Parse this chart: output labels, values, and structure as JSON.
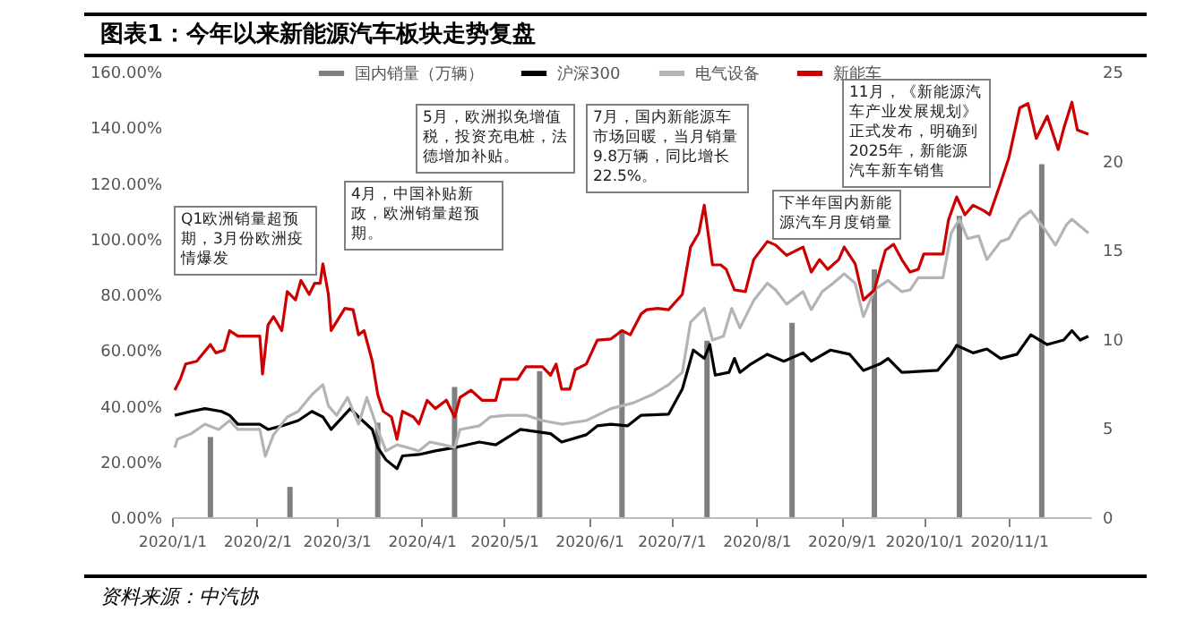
{
  "chart_data": {
    "type": "line",
    "title": "图表1：今年以来新能源汽车板块走势复盘",
    "annotations": [
      "Q1欧洲销量超预期，3月份欧洲疫情爆发",
      "4月，中国补贴新政，欧洲销量超预期。",
      "5月，欧洲拟免增值税，投资充电桩，法德增加补贴。",
      "7月，国内新能源车市场回暖，当月销量9.8万辆，同比增长22.5%。",
      "下半年国内新能源汽车月度销量",
      "11月，《新能源汽车产业发展规划》正式发布，明确到2025年，新能源汽车新车销售",
      "资料来源：中汽协"
    ],
    "xlim": [
      "2020-01-01",
      "2020-12-01"
    ],
    "xticks": [
      {
        "value": "2020-01-01",
        "label": "2020/1/1"
      },
      {
        "value": "2020-02-01",
        "label": "2020/2/1"
      },
      {
        "value": "2020-03-01",
        "label": "2020/3/1"
      },
      {
        "value": "2020-04-01",
        "label": "2020/4/1"
      },
      {
        "value": "2020-05-01",
        "label": "2020/5/1"
      },
      {
        "value": "2020-06-01",
        "label": "2020/6/1"
      },
      {
        "value": "2020-07-01",
        "label": "2020/7/1"
      },
      {
        "value": "2020-08-01",
        "label": "2020/8/1"
      },
      {
        "value": "2020-09-01",
        "label": "2020/9/1"
      },
      {
        "value": "2020-10-01",
        "label": "2020/10/1"
      },
      {
        "value": "2020-11-01",
        "label": "2020/11/1"
      }
    ],
    "ylim": [
      0,
      160
    ],
    "yticks": [
      {
        "value": 0,
        "label": "0.00%"
      },
      {
        "value": 20,
        "label": "20.00%"
      },
      {
        "value": 40,
        "label": "40.00%"
      },
      {
        "value": 60,
        "label": "60.00%"
      },
      {
        "value": 80,
        "label": "80.00%"
      },
      {
        "value": 100,
        "label": "100.00%"
      },
      {
        "value": 120,
        "label": "120.00%"
      },
      {
        "value": 140,
        "label": "140.00%"
      },
      {
        "value": 160,
        "label": "160.00%"
      }
    ],
    "y2lim": [
      0,
      25
    ],
    "y2ticks": [
      0,
      5,
      10,
      15,
      20,
      25
    ],
    "legend": "top",
    "series": [
      {
        "name": "国内销量（万辆）",
        "type": "bar",
        "axis": "y2",
        "color": "#7f7f7f",
        "x": [
          "2020-01-15",
          "2020-02-13",
          "2020-03-16",
          "2020-04-13",
          "2020-05-14",
          "2020-06-13",
          "2020-07-14",
          "2020-08-14",
          "2020-09-13",
          "2020-10-14",
          "2020-11-13"
        ],
        "values": [
          4.5,
          1.7,
          5.3,
          7.3,
          8.2,
          10.5,
          9.9,
          10.9,
          13.9,
          16.9,
          19.8
        ]
      },
      {
        "name": "沪深300",
        "color": "#000000",
        "x": [
          "2020-01-02",
          "2020-01-08",
          "2020-01-13",
          "2020-01-19",
          "2020-01-22",
          "2020-01-25",
          "2020-02-02",
          "2020-02-05",
          "2020-02-10",
          "2020-02-16",
          "2020-02-21",
          "2020-02-25",
          "2020-02-28",
          "2020-03-06",
          "2020-03-09",
          "2020-03-14",
          "2020-03-16",
          "2020-03-19",
          "2020-03-23",
          "2020-03-25",
          "2020-03-31",
          "2020-04-06",
          "2020-04-13",
          "2020-04-22",
          "2020-04-28",
          "2020-05-07",
          "2020-05-18",
          "2020-05-22",
          "2020-05-31",
          "2020-06-04",
          "2020-06-09",
          "2020-06-15",
          "2020-06-20",
          "2020-06-30",
          "2020-07-05",
          "2020-07-09",
          "2020-07-13",
          "2020-07-15",
          "2020-07-17",
          "2020-07-22",
          "2020-07-24",
          "2020-07-26",
          "2020-07-30",
          "2020-08-05",
          "2020-08-11",
          "2020-08-18",
          "2020-08-21",
          "2020-08-28",
          "2020-09-04",
          "2020-09-09",
          "2020-09-15",
          "2020-09-18",
          "2020-09-23",
          "2020-10-06",
          "2020-10-11",
          "2020-10-13",
          "2020-10-19",
          "2020-10-24",
          "2020-10-29",
          "2020-11-04",
          "2020-11-09",
          "2020-11-15",
          "2020-11-21",
          "2020-11-24",
          "2020-11-27",
          "2020-11-30"
        ],
        "values": [
          36.6,
          38,
          39,
          38,
          36.6,
          33.4,
          33.4,
          31.5,
          32.8,
          34.7,
          38,
          36,
          31.5,
          39,
          36,
          31.5,
          25,
          20.6,
          17.4,
          22,
          22.5,
          23.8,
          25,
          27,
          26,
          31.5,
          30,
          27,
          29.6,
          32.8,
          33.4,
          32.8,
          36.6,
          37,
          46,
          60,
          57,
          62,
          51,
          52,
          57,
          52,
          55,
          58.5,
          56,
          59,
          56,
          60,
          58.5,
          52.7,
          55,
          57,
          52,
          52.7,
          58.5,
          61.7,
          59,
          60.4,
          57,
          58.5,
          65.5,
          62,
          63.6,
          67,
          63.6,
          65
        ]
      },
      {
        "name": "电气设备",
        "color": "#b4b4b4",
        "x": [
          "2020-01-02",
          "2020-01-03",
          "2020-01-08",
          "2020-01-13",
          "2020-01-18",
          "2020-01-22",
          "2020-01-25",
          "2020-02-02",
          "2020-02-04",
          "2020-02-07",
          "2020-02-12",
          "2020-02-16",
          "2020-02-21",
          "2020-02-25",
          "2020-02-27",
          "2020-03-01",
          "2020-03-05",
          "2020-03-09",
          "2020-03-12",
          "2020-03-16",
          "2020-03-19",
          "2020-03-23",
          "2020-03-27",
          "2020-03-31",
          "2020-04-04",
          "2020-04-09",
          "2020-04-13",
          "2020-04-15",
          "2020-04-22",
          "2020-04-26",
          "2020-05-02",
          "2020-05-09",
          "2020-05-15",
          "2020-05-22",
          "2020-05-31",
          "2020-06-09",
          "2020-06-17",
          "2020-06-24",
          "2020-06-30",
          "2020-07-05",
          "2020-07-08",
          "2020-07-13",
          "2020-07-16",
          "2020-07-20",
          "2020-07-23",
          "2020-07-26",
          "2020-07-31",
          "2020-08-05",
          "2020-08-08",
          "2020-08-12",
          "2020-08-18",
          "2020-08-21",
          "2020-08-25",
          "2020-08-29",
          "2020-09-02",
          "2020-09-06",
          "2020-09-09",
          "2020-09-13",
          "2020-09-18",
          "2020-09-23",
          "2020-09-26",
          "2020-09-29",
          "2020-10-08",
          "2020-10-11",
          "2020-10-14",
          "2020-10-17",
          "2020-10-21",
          "2020-10-24",
          "2020-10-29",
          "2020-11-01",
          "2020-11-05",
          "2020-11-09",
          "2020-11-14",
          "2020-11-18",
          "2020-11-22",
          "2020-11-24",
          "2020-11-30"
        ],
        "values": [
          25,
          28,
          30,
          33.4,
          31.5,
          34.7,
          31.5,
          31.5,
          21.9,
          29.6,
          36,
          38,
          44,
          47.6,
          40,
          36.6,
          43,
          33.4,
          43,
          31.5,
          23.8,
          26,
          25,
          23.8,
          27,
          26,
          25,
          31.5,
          32.8,
          36,
          36.6,
          36.6,
          34.7,
          33.4,
          34.7,
          39,
          41,
          44,
          47.6,
          52,
          70,
          75,
          63.6,
          65,
          75,
          68,
          77.8,
          84,
          81.6,
          76.5,
          81,
          74.5,
          81,
          84,
          87.4,
          84,
          72,
          81.6,
          85,
          81,
          81.6,
          86,
          86,
          102,
          107,
          100,
          101,
          92.5,
          99,
          100,
          107,
          110,
          103.5,
          97.7,
          105,
          107,
          102
        ]
      },
      {
        "name": "新能车",
        "color": "#cc0000",
        "x": [
          "2020-01-02",
          "2020-01-04",
          "2020-01-06",
          "2020-01-10",
          "2020-01-15",
          "2020-01-17",
          "2020-01-20",
          "2020-01-22",
          "2020-01-25",
          "2020-02-02",
          "2020-02-03",
          "2020-02-05",
          "2020-02-07",
          "2020-02-10",
          "2020-02-12",
          "2020-02-15",
          "2020-02-17",
          "2020-02-20",
          "2020-02-22",
          "2020-02-24",
          "2020-02-25",
          "2020-02-27",
          "2020-02-28",
          "2020-03-04",
          "2020-03-07",
          "2020-03-09",
          "2020-03-11",
          "2020-03-14",
          "2020-03-16",
          "2020-03-18",
          "2020-03-21",
          "2020-03-23",
          "2020-03-25",
          "2020-03-29",
          "2020-03-31",
          "2020-04-03",
          "2020-04-06",
          "2020-04-10",
          "2020-04-13",
          "2020-04-15",
          "2020-04-19",
          "2020-04-23",
          "2020-04-28",
          "2020-04-30",
          "2020-05-06",
          "2020-05-09",
          "2020-05-15",
          "2020-05-18",
          "2020-05-20",
          "2020-05-22",
          "2020-05-25",
          "2020-05-27",
          "2020-05-31",
          "2020-06-04",
          "2020-06-09",
          "2020-06-13",
          "2020-06-16",
          "2020-06-20",
          "2020-06-22",
          "2020-06-26",
          "2020-06-30",
          "2020-07-05",
          "2020-07-08",
          "2020-07-11",
          "2020-07-13",
          "2020-07-16",
          "2020-07-19",
          "2020-07-21",
          "2020-07-24",
          "2020-07-28",
          "2020-07-31",
          "2020-08-05",
          "2020-08-08",
          "2020-08-12",
          "2020-08-18",
          "2020-08-21",
          "2020-08-24",
          "2020-08-27",
          "2020-08-31",
          "2020-09-02",
          "2020-09-06",
          "2020-09-09",
          "2020-09-13",
          "2020-09-17",
          "2020-09-20",
          "2020-09-23",
          "2020-09-26",
          "2020-09-29",
          "2020-10-01",
          "2020-10-08",
          "2020-10-10",
          "2020-10-13",
          "2020-10-16",
          "2020-10-19",
          "2020-10-23",
          "2020-10-25",
          "2020-10-29",
          "2020-11-01",
          "2020-11-05",
          "2020-11-08",
          "2020-11-11",
          "2020-11-15",
          "2020-11-19",
          "2020-11-21",
          "2020-11-24",
          "2020-11-26",
          "2020-11-30"
        ],
        "values": [
          45.6,
          49.5,
          55,
          56,
          62,
          59,
          60,
          67,
          65,
          65,
          51.4,
          69,
          72,
          67,
          81,
          78,
          85,
          80,
          84,
          84,
          91,
          80,
          67,
          75,
          74.5,
          65.5,
          67,
          56,
          44,
          38,
          36,
          28,
          38,
          36,
          33.5,
          42,
          39,
          42,
          36,
          43,
          45.6,
          42,
          42,
          49.5,
          49.5,
          54,
          54,
          51,
          55,
          46,
          46,
          53,
          55,
          63.6,
          64,
          67,
          65.5,
          73,
          74.5,
          75,
          74.5,
          80,
          97,
          102,
          112,
          90.6,
          90.6,
          89,
          81.6,
          81,
          92.5,
          99,
          97.7,
          94,
          97,
          88,
          92.5,
          89,
          92.5,
          97,
          91,
          78,
          81.6,
          95.8,
          98,
          92.5,
          88,
          89,
          94.5,
          94.5,
          106.7,
          115,
          108.6,
          112,
          110,
          108.6,
          120,
          129,
          147,
          148.5,
          136,
          144,
          132,
          139.5,
          149,
          139,
          137.5
        ]
      }
    ]
  }
}
